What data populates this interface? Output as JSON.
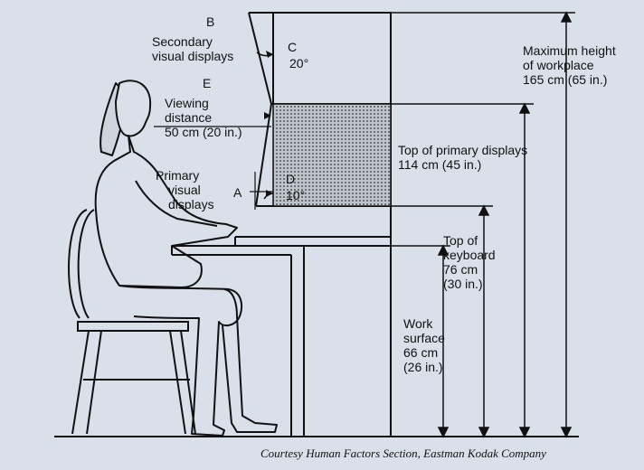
{
  "labels": {
    "b_letter": "B",
    "secondary_displays": [
      "Secondary",
      "visual displays"
    ],
    "c_letter": "C",
    "c_angle": "20°",
    "e_letter": "E",
    "viewing_distance": [
      "Viewing",
      "distance",
      "50 cm (20 in.)"
    ],
    "primary_displays": [
      "Primary",
      "visual",
      "displays"
    ],
    "a_letter": "A",
    "d_letter": "D",
    "d_angle": "10°",
    "max_height": [
      "Maximum height",
      "of workplace",
      "165 cm (65 in.)"
    ],
    "top_primary": [
      "Top of primary displays",
      "114 cm (45 in.)"
    ],
    "top_keyboard": [
      "Top of",
      "keyboard",
      "76 cm",
      "(30 in.)"
    ],
    "work_surface": [
      "Work",
      "surface",
      "66 cm",
      "(26 in.)"
    ]
  },
  "credit": "Courtesy Human Factors Section, Eastman Kodak Company",
  "colors": {
    "line": "#111111",
    "shade": "#9aa0a8",
    "background": "#d9e0ea"
  }
}
